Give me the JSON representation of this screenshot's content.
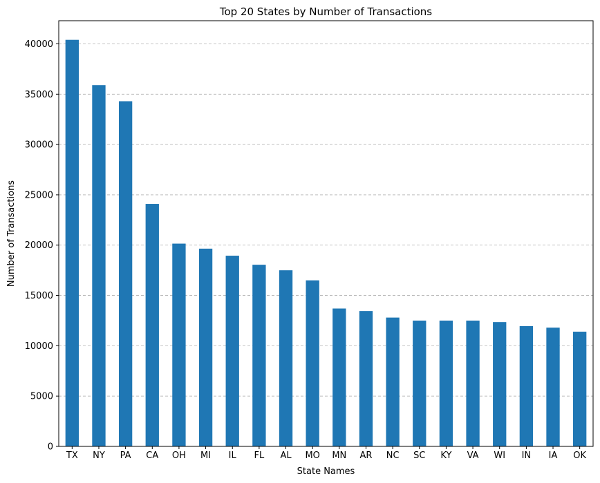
{
  "chart_data": {
    "type": "bar",
    "title": "Top 20 States by Number of Transactions",
    "xlabel": "State Names",
    "ylabel": "Number of Transactions",
    "categories": [
      "TX",
      "NY",
      "PA",
      "CA",
      "OH",
      "MI",
      "IL",
      "FL",
      "AL",
      "MO",
      "MN",
      "AR",
      "NC",
      "SC",
      "KY",
      "VA",
      "WI",
      "IN",
      "IA",
      "OK"
    ],
    "values": [
      40400,
      35900,
      34300,
      24100,
      20150,
      19650,
      18950,
      18050,
      17500,
      16500,
      13700,
      13450,
      12800,
      12500,
      12500,
      12500,
      12350,
      11950,
      11800,
      11400
    ],
    "ylim": [
      0,
      42300
    ],
    "yticks": [
      0,
      5000,
      10000,
      15000,
      20000,
      25000,
      30000,
      35000,
      40000
    ],
    "grid": "y-dashed",
    "bar_color": "#1f77b4"
  }
}
